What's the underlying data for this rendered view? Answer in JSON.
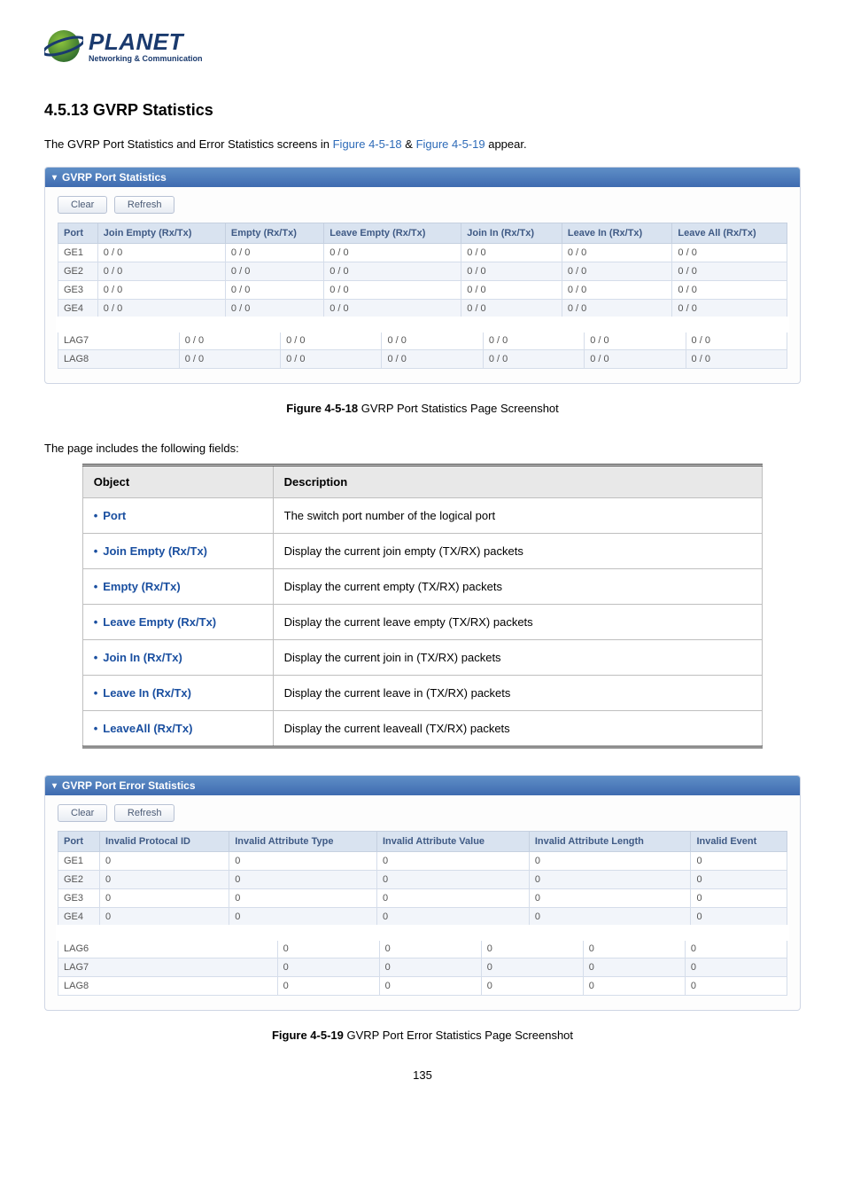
{
  "logo": {
    "main": "PLANET",
    "sub": "Networking & Communication"
  },
  "section": {
    "title": "4.5.13 GVRP Statistics",
    "intro_pre": "The GVRP Port Statistics and Error Statistics screens in ",
    "ref1": "Figure 4-5-18",
    "intro_mid": " & ",
    "ref2": "Figure 4-5-19",
    "intro_post": " appear."
  },
  "panel1": {
    "title": "GVRP Port Statistics",
    "clear": "Clear",
    "refresh": "Refresh",
    "columns": [
      "Port",
      "Join Empty (Rx/Tx)",
      "Empty (Rx/Tx)",
      "Leave Empty (Rx/Tx)",
      "Join In (Rx/Tx)",
      "Leave In (Rx/Tx)",
      "Leave All (Rx/Tx)"
    ],
    "rows_top": [
      [
        "GE1",
        "0 / 0",
        "0 / 0",
        "0 / 0",
        "0 / 0",
        "0 / 0",
        "0 / 0"
      ],
      [
        "GE2",
        "0 / 0",
        "0 / 0",
        "0 / 0",
        "0 / 0",
        "0 / 0",
        "0 / 0"
      ],
      [
        "GE3",
        "0 / 0",
        "0 / 0",
        "0 / 0",
        "0 / 0",
        "0 / 0",
        "0 / 0"
      ],
      [
        "GE4",
        "0 / 0",
        "0 / 0",
        "0 / 0",
        "0 / 0",
        "0 / 0",
        "0 / 0"
      ]
    ],
    "rows_bottom": [
      [
        "LAG7",
        "0 / 0",
        "0 / 0",
        "0 / 0",
        "0 / 0",
        "0 / 0",
        "0 / 0"
      ],
      [
        "LAG8",
        "0 / 0",
        "0 / 0",
        "0 / 0",
        "0 / 0",
        "0 / 0",
        "0 / 0"
      ]
    ]
  },
  "caption1": {
    "bold": "Figure 4-5-18",
    "rest": " GVRP Port Statistics Page Screenshot"
  },
  "fields_intro": "The page includes the following fields:",
  "fields": {
    "head_obj": "Object",
    "head_desc": "Description",
    "rows": [
      {
        "obj": "Port",
        "desc": "The switch port number of the logical port"
      },
      {
        "obj": "Join Empty (Rx/Tx)",
        "desc": "Display the current join empty (TX/RX) packets"
      },
      {
        "obj": "Empty (Rx/Tx)",
        "desc": "Display the current empty (TX/RX) packets"
      },
      {
        "obj": "Leave Empty (Rx/Tx)",
        "desc": "Display the current leave empty (TX/RX) packets"
      },
      {
        "obj": "Join In (Rx/Tx)",
        "desc": "Display the current join in (TX/RX) packets"
      },
      {
        "obj": "Leave In (Rx/Tx)",
        "desc": "Display the current leave in (TX/RX) packets"
      },
      {
        "obj": "LeaveAll (Rx/Tx)",
        "desc": "Display the current leaveall (TX/RX) packets"
      }
    ]
  },
  "panel2": {
    "title": "GVRP Port Error Statistics",
    "clear": "Clear",
    "refresh": "Refresh",
    "columns": [
      "Port",
      "Invalid Protocal ID",
      "Invalid Attribute Type",
      "Invalid Attribute Value",
      "Invalid Attribute Length",
      "Invalid Event"
    ],
    "rows_top": [
      [
        "GE1",
        "0",
        "0",
        "0",
        "0",
        "0"
      ],
      [
        "GE2",
        "0",
        "0",
        "0",
        "0",
        "0"
      ],
      [
        "GE3",
        "0",
        "0",
        "0",
        "0",
        "0"
      ],
      [
        "GE4",
        "0",
        "0",
        "0",
        "0",
        "0"
      ]
    ],
    "rows_bottom": [
      [
        "LAG6",
        "0",
        "0",
        "0",
        "0",
        "0"
      ],
      [
        "LAG7",
        "0",
        "0",
        "0",
        "0",
        "0"
      ],
      [
        "LAG8",
        "0",
        "0",
        "0",
        "0",
        "0"
      ]
    ]
  },
  "caption2": {
    "bold": "Figure 4-5-19",
    "rest": " GVRP Port Error Statistics Page Screenshot"
  },
  "page_number": "135"
}
